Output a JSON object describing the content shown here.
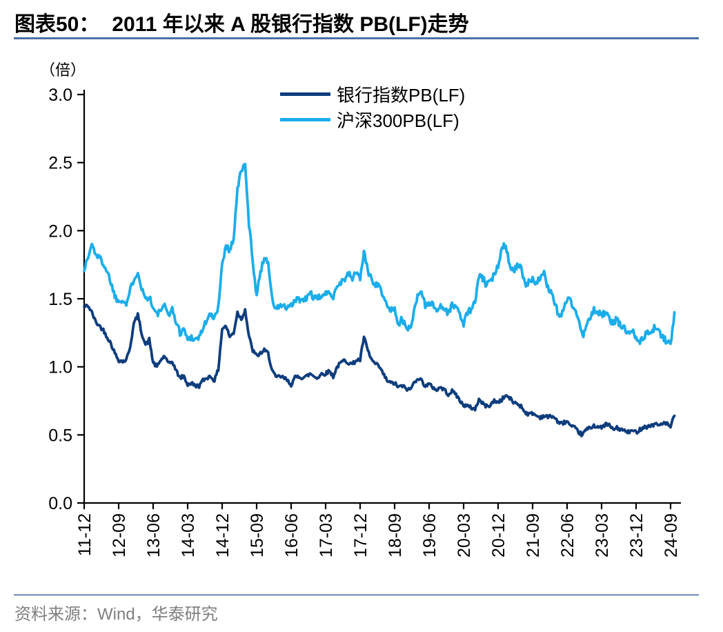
{
  "header": {
    "figure_label": "图表50：",
    "title": "2011 年以来 A 股银行指数 PB(LF)走势"
  },
  "footer": {
    "source": "资料来源：Wind，华泰研究"
  },
  "colors": {
    "bank_line": "#0e3d7d",
    "csi300_line": "#1badea",
    "title_underline": "#4a6fa5",
    "footer_divider": "#8096c0",
    "axis": "#000000",
    "source_text": "#7f7f7f"
  },
  "chart_data": {
    "type": "line",
    "unit_label": "（倍）",
    "ylim": [
      0,
      3.0
    ],
    "yticks": [
      0.0,
      0.5,
      1.0,
      1.5,
      2.0,
      2.5,
      3.0
    ],
    "y_tick_labels": [
      "0.0",
      "0.5",
      "1.0",
      "1.5",
      "2.0",
      "2.5",
      "3.0"
    ],
    "x_tick_labels": [
      "11-12",
      "12-09",
      "13-06",
      "14-03",
      "14-12",
      "15-09",
      "16-06",
      "17-03",
      "17-12",
      "18-09",
      "19-06",
      "20-03",
      "20-12",
      "21-09",
      "22-06",
      "23-03",
      "23-12",
      "24-09"
    ],
    "months_per_tick": 9,
    "x_start": "2011-12",
    "x_end": "2024-10",
    "grid": false,
    "legend_position": "top-center",
    "series": [
      {
        "name": "银行指数PB(LF)",
        "color": "#0e3d7d",
        "values": [
          1.44,
          1.45,
          1.4,
          1.33,
          1.3,
          1.27,
          1.22,
          1.17,
          1.1,
          1.05,
          1.04,
          1.05,
          1.15,
          1.32,
          1.38,
          1.25,
          1.16,
          1.2,
          1.03,
          1.0,
          1.05,
          1.08,
          1.02,
          1.04,
          0.97,
          0.92,
          0.93,
          0.87,
          0.88,
          0.86,
          0.86,
          0.9,
          0.92,
          0.93,
          0.9,
          0.98,
          1.28,
          1.3,
          1.22,
          1.25,
          1.4,
          1.35,
          1.42,
          1.22,
          1.12,
          1.08,
          1.1,
          1.12,
          1.1,
          0.98,
          0.92,
          0.93,
          0.92,
          0.9,
          0.87,
          0.92,
          0.93,
          0.92,
          0.93,
          0.95,
          0.93,
          0.92,
          0.95,
          0.95,
          0.97,
          0.93,
          1.0,
          1.03,
          1.05,
          1.03,
          1.02,
          1.05,
          1.05,
          1.22,
          1.12,
          1.05,
          1.02,
          1.0,
          0.95,
          0.9,
          0.88,
          0.88,
          0.85,
          0.86,
          0.84,
          0.83,
          0.88,
          0.92,
          0.9,
          0.86,
          0.87,
          0.85,
          0.83,
          0.85,
          0.83,
          0.8,
          0.82,
          0.8,
          0.75,
          0.72,
          0.71,
          0.7,
          0.69,
          0.76,
          0.73,
          0.71,
          0.72,
          0.75,
          0.74,
          0.76,
          0.79,
          0.77,
          0.74,
          0.73,
          0.71,
          0.67,
          0.65,
          0.66,
          0.64,
          0.63,
          0.64,
          0.63,
          0.64,
          0.62,
          0.58,
          0.59,
          0.6,
          0.56,
          0.55,
          0.52,
          0.5,
          0.54,
          0.55,
          0.57,
          0.56,
          0.55,
          0.58,
          0.57,
          0.54,
          0.55,
          0.54,
          0.53,
          0.52,
          0.53,
          0.52,
          0.54,
          0.56,
          0.56,
          0.57,
          0.58,
          0.57,
          0.59,
          0.58,
          0.56,
          0.64
        ]
      },
      {
        "name": "沪深300PB(LF)",
        "color": "#1badea",
        "values": [
          1.72,
          1.8,
          1.9,
          1.83,
          1.8,
          1.76,
          1.7,
          1.62,
          1.52,
          1.48,
          1.5,
          1.46,
          1.56,
          1.65,
          1.7,
          1.58,
          1.5,
          1.52,
          1.43,
          1.38,
          1.42,
          1.44,
          1.39,
          1.42,
          1.33,
          1.25,
          1.28,
          1.2,
          1.22,
          1.2,
          1.22,
          1.28,
          1.35,
          1.38,
          1.35,
          1.45,
          1.75,
          1.9,
          1.85,
          1.95,
          2.3,
          2.45,
          2.48,
          2.05,
          1.78,
          1.52,
          1.7,
          1.8,
          1.78,
          1.5,
          1.42,
          1.45,
          1.45,
          1.42,
          1.45,
          1.48,
          1.5,
          1.48,
          1.5,
          1.55,
          1.5,
          1.5,
          1.53,
          1.53,
          1.55,
          1.52,
          1.6,
          1.62,
          1.65,
          1.68,
          1.65,
          1.7,
          1.65,
          1.85,
          1.7,
          1.65,
          1.6,
          1.62,
          1.5,
          1.45,
          1.42,
          1.42,
          1.32,
          1.35,
          1.28,
          1.28,
          1.4,
          1.52,
          1.56,
          1.45,
          1.48,
          1.45,
          1.42,
          1.45,
          1.42,
          1.4,
          1.45,
          1.45,
          1.38,
          1.32,
          1.4,
          1.42,
          1.48,
          1.66,
          1.65,
          1.6,
          1.62,
          1.68,
          1.75,
          1.88,
          1.9,
          1.75,
          1.7,
          1.75,
          1.72,
          1.6,
          1.62,
          1.65,
          1.62,
          1.65,
          1.68,
          1.58,
          1.55,
          1.45,
          1.36,
          1.42,
          1.5,
          1.48,
          1.42,
          1.35,
          1.22,
          1.3,
          1.35,
          1.42,
          1.4,
          1.38,
          1.4,
          1.35,
          1.32,
          1.35,
          1.3,
          1.28,
          1.25,
          1.28,
          1.22,
          1.18,
          1.22,
          1.25,
          1.25,
          1.3,
          1.25,
          1.22,
          1.18,
          1.16,
          1.4
        ]
      }
    ]
  }
}
